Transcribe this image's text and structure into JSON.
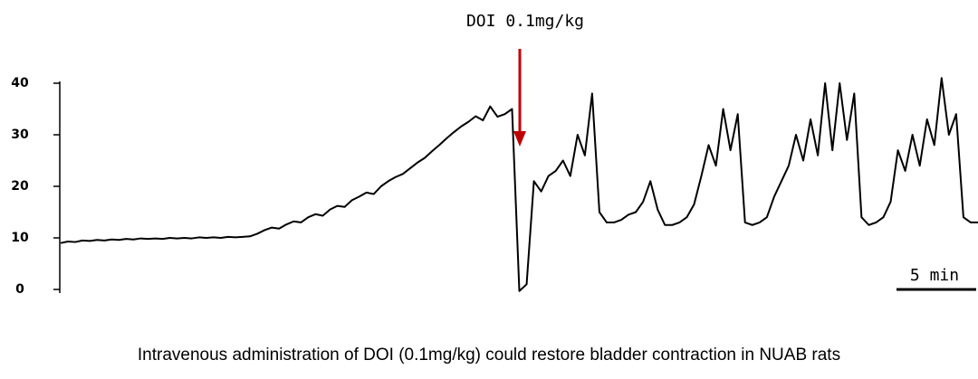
{
  "chart_data": {
    "type": "line",
    "annotation": "DOI 0.1mg/kg",
    "scale_bar_label": "5 min",
    "caption": "Intravenous administration of DOI (0.1mg/kg) could restore bladder contraction in NUAB rats",
    "ylim": [
      -0.5,
      41
    ],
    "yticks": [
      0,
      10,
      20,
      30,
      40
    ],
    "color": "#000000",
    "values": [
      9,
      9.3,
      9.2,
      9.5,
      9.4,
      9.6,
      9.5,
      9.7,
      9.6,
      9.8,
      9.7,
      9.9,
      9.8,
      9.9,
      9.8,
      10,
      9.9,
      10,
      9.9,
      10.1,
      10,
      10.1,
      10,
      10.2,
      10.1,
      10.2,
      10.3,
      10.8,
      11.5,
      12,
      11.8,
      12.6,
      13.2,
      13,
      14,
      14.6,
      14.3,
      15.5,
      16.2,
      16,
      17.3,
      18,
      18.8,
      18.5,
      20,
      21,
      21.8,
      22.4,
      23.5,
      24.6,
      25.5,
      26.8,
      28,
      29.3,
      30.5,
      31.6,
      32.5,
      33.6,
      32.8,
      35.5,
      33.5,
      34,
      35,
      -0.3,
      1,
      21,
      19,
      22,
      23,
      25,
      22,
      30,
      26,
      38,
      15,
      13,
      13,
      13.5,
      14.5,
      15,
      17,
      21,
      15.5,
      12.5,
      12.5,
      13,
      14,
      16.5,
      22,
      28,
      24,
      35,
      27,
      34,
      13,
      12.5,
      13,
      14,
      18,
      21,
      24,
      30,
      25,
      33,
      26,
      40,
      27,
      40,
      29,
      38,
      14,
      12.5,
      13,
      14,
      17,
      27,
      23,
      30,
      24,
      33,
      28,
      41,
      30,
      34,
      14,
      13,
      13
    ]
  }
}
